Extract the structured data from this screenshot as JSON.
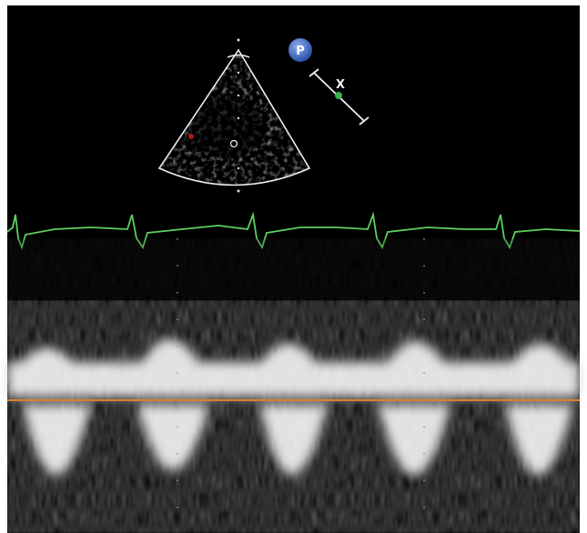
{
  "overlay": {
    "mode_icon": "P",
    "cursor_marker": "X"
  }
}
